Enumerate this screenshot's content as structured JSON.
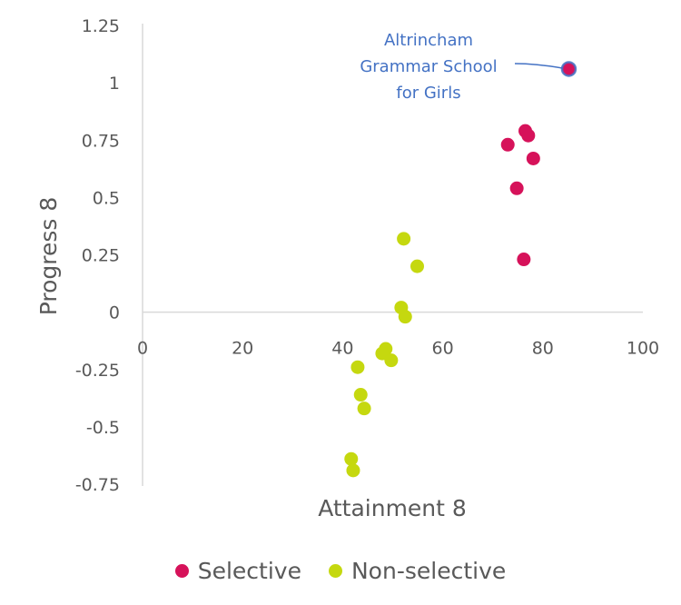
{
  "chart_data": {
    "type": "scatter",
    "xlabel": "Attainment 8",
    "ylabel": "Progress 8",
    "xlim": [
      0,
      100
    ],
    "ylim": [
      -0.75,
      1.25
    ],
    "xticks": [
      0,
      20,
      40,
      60,
      80,
      100
    ],
    "yticks": [
      1.25,
      1,
      0.75,
      0.5,
      0.25,
      0,
      -0.25,
      -0.5,
      -0.75
    ],
    "ytick_labels": [
      "1.25",
      "1",
      "0.75",
      "0.5",
      "0.25",
      "0",
      "-0.25",
      "-0.5",
      "-0.75"
    ],
    "grid": false,
    "legend_position": "bottom",
    "series": [
      {
        "name": "Selective",
        "color": "#d6125a",
        "points": [
          {
            "x": 85.2,
            "y": 1.06
          },
          {
            "x": 76.5,
            "y": 0.79
          },
          {
            "x": 77.1,
            "y": 0.77
          },
          {
            "x": 73.0,
            "y": 0.73
          },
          {
            "x": 78.1,
            "y": 0.67
          },
          {
            "x": 74.8,
            "y": 0.54
          },
          {
            "x": 76.2,
            "y": 0.23
          }
        ]
      },
      {
        "name": "Non-selective",
        "color": "#c5d80f",
        "points": [
          {
            "x": 52.2,
            "y": 0.32
          },
          {
            "x": 54.9,
            "y": 0.2
          },
          {
            "x": 51.7,
            "y": 0.02
          },
          {
            "x": 52.5,
            "y": -0.02
          },
          {
            "x": 48.6,
            "y": -0.16
          },
          {
            "x": 47.9,
            "y": -0.18
          },
          {
            "x": 49.7,
            "y": -0.21
          },
          {
            "x": 43.0,
            "y": -0.24
          },
          {
            "x": 43.6,
            "y": -0.36
          },
          {
            "x": 44.3,
            "y": -0.42
          },
          {
            "x": 41.7,
            "y": -0.64
          },
          {
            "x": 42.1,
            "y": -0.69
          }
        ]
      }
    ],
    "annotations": [
      {
        "lines": [
          "Altrincham",
          "Grammar School",
          "for Girls"
        ],
        "x": 85.2,
        "y": 1.06,
        "color": "#4472c4"
      }
    ]
  }
}
